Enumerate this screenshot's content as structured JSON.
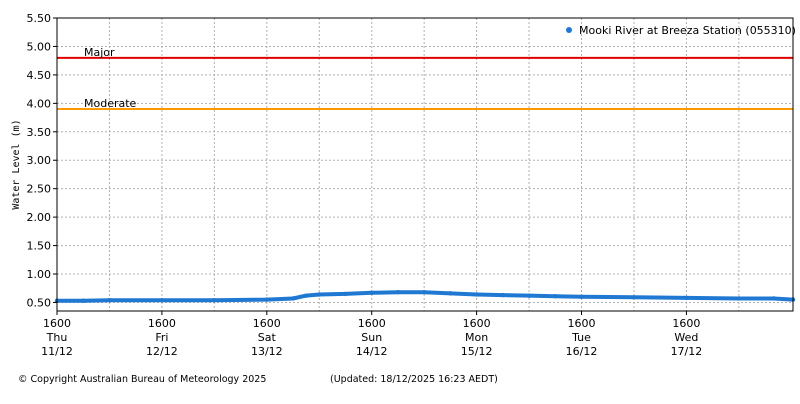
{
  "chart_data": {
    "type": "line",
    "title": "",
    "ylabel": "Water Level (m)",
    "xlabel": "",
    "ylim": [
      0.35,
      5.5
    ],
    "yticks": [
      0.5,
      1.0,
      1.5,
      2.0,
      2.5,
      3.0,
      3.5,
      4.0,
      4.5,
      5.0,
      5.5
    ],
    "ytick_labels": [
      "0.50",
      "1.00",
      "1.50",
      "2.00",
      "2.50",
      "3.00",
      "3.50",
      "4.00",
      "4.50",
      "5.00",
      "5.50"
    ],
    "xlim": [
      "2025-12-11 16:00",
      "2025-12-18 16:23"
    ],
    "xticks": [
      {
        "time": "2025-12-11 16:00",
        "line1": "1600",
        "line2": "Thu",
        "line3": "11/12"
      },
      {
        "time": "2025-12-12 16:00",
        "line1": "1600",
        "line2": "Fri",
        "line3": "12/12"
      },
      {
        "time": "2025-12-13 16:00",
        "line1": "1600",
        "line2": "Sat",
        "line3": "13/12"
      },
      {
        "time": "2025-12-14 16:00",
        "line1": "1600",
        "line2": "Sun",
        "line3": "14/12"
      },
      {
        "time": "2025-12-15 16:00",
        "line1": "1600",
        "line2": "Mon",
        "line3": "15/12"
      },
      {
        "time": "2025-12-16 16:00",
        "line1": "1600",
        "line2": "Tue",
        "line3": "16/12"
      },
      {
        "time": "2025-12-17 16:00",
        "line1": "1600",
        "line2": "Wed",
        "line3": "17/12"
      }
    ],
    "grid": true,
    "legend_position": "top-right",
    "series": [
      {
        "name": "Mooki River at Breeza Station (055310)",
        "color": "#1f78d1",
        "points": [
          [
            "2025-12-11 16:00",
            0.53
          ],
          [
            "2025-12-11 22:00",
            0.53
          ],
          [
            "2025-12-12 04:00",
            0.54
          ],
          [
            "2025-12-12 16:00",
            0.54
          ],
          [
            "2025-12-13 04:00",
            0.54
          ],
          [
            "2025-12-13 16:00",
            0.55
          ],
          [
            "2025-12-13 22:00",
            0.57
          ],
          [
            "2025-12-14 01:00",
            0.62
          ],
          [
            "2025-12-14 04:00",
            0.64
          ],
          [
            "2025-12-14 10:00",
            0.65
          ],
          [
            "2025-12-14 16:00",
            0.67
          ],
          [
            "2025-12-14 22:00",
            0.68
          ],
          [
            "2025-12-15 04:00",
            0.68
          ],
          [
            "2025-12-15 10:00",
            0.66
          ],
          [
            "2025-12-15 16:00",
            0.64
          ],
          [
            "2025-12-15 22:00",
            0.63
          ],
          [
            "2025-12-16 04:00",
            0.62
          ],
          [
            "2025-12-16 10:00",
            0.61
          ],
          [
            "2025-12-16 16:00",
            0.6
          ],
          [
            "2025-12-17 04:00",
            0.59
          ],
          [
            "2025-12-17 16:00",
            0.58
          ],
          [
            "2025-12-18 04:00",
            0.57
          ],
          [
            "2025-12-18 12:00",
            0.57
          ],
          [
            "2025-12-18 16:23",
            0.55
          ]
        ]
      }
    ],
    "thresholds": [
      {
        "name": "Major",
        "value": 4.8,
        "color": "#e00000"
      },
      {
        "name": "Moderate",
        "value": 3.9,
        "color": "#ff9900"
      }
    ]
  },
  "footer": {
    "copyright": "© Copyright Australian Bureau of Meteorology 2025",
    "updated": "(Updated: 18/12/2025 16:23 AEDT)"
  }
}
